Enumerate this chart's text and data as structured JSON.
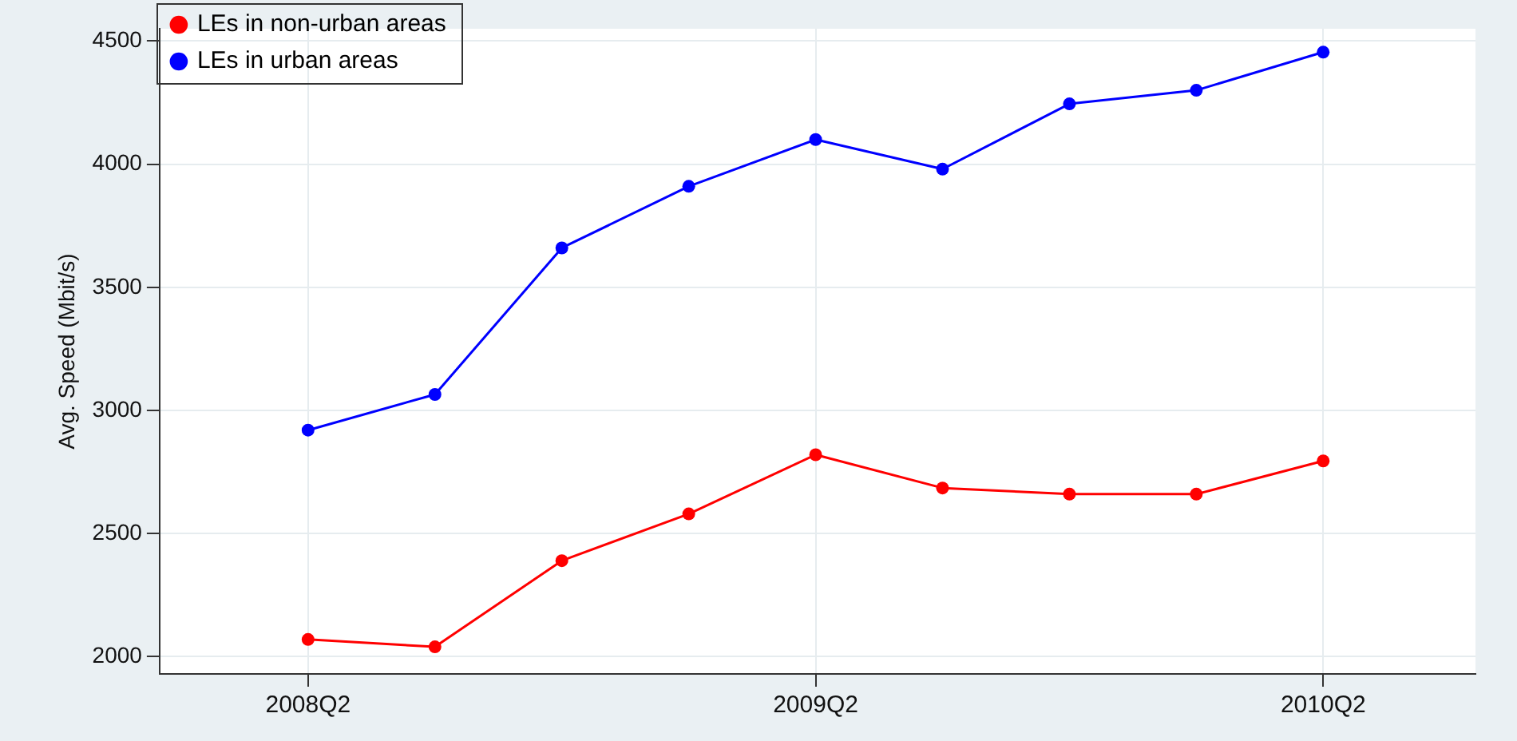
{
  "chart_data": {
    "type": "line",
    "ylabel": "Avg. Speed (Mbit/s)",
    "categories": [
      "2008Q2",
      null,
      null,
      null,
      "2009Q2",
      null,
      null,
      null,
      "2010Q2"
    ],
    "ylim": [
      1930,
      4550
    ],
    "yticks": [
      2000,
      2500,
      3000,
      3500,
      4000,
      4500
    ],
    "series": [
      {
        "name": "LEs in non-urban areas",
        "color": "#ff0000",
        "values": [
          2070,
          2040,
          2390,
          2580,
          2820,
          2685,
          2660,
          2660,
          2795
        ]
      },
      {
        "name": "LEs in urban areas",
        "color": "#0000ff",
        "values": [
          2920,
          3065,
          3660,
          3910,
          4100,
          3980,
          4245,
          4300,
          4455
        ]
      }
    ],
    "grid": true,
    "legend": "top left",
    "marker": "circle",
    "line_style": "solid"
  }
}
